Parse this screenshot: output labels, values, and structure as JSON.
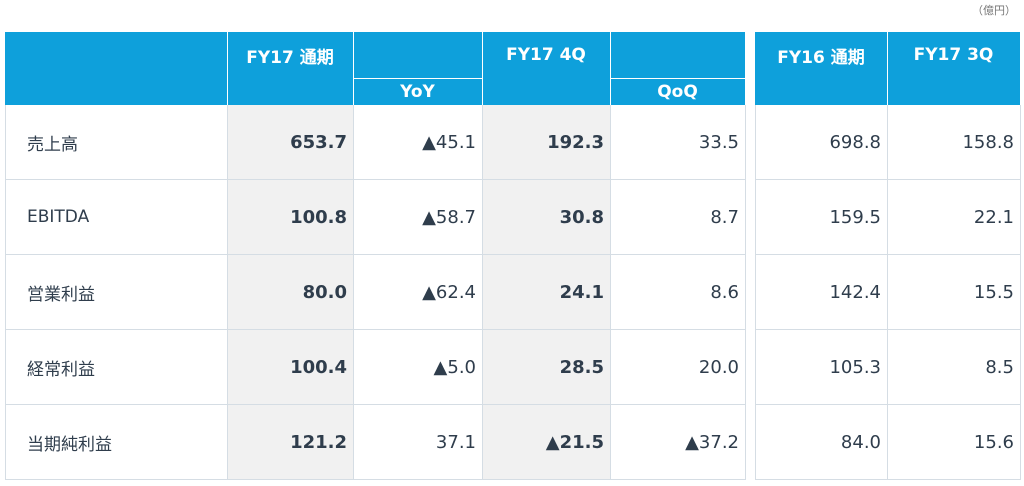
{
  "unit": "（億円）",
  "table": {
    "columns": [
      "FY17 通期",
      "YoY",
      "FY17 4Q",
      "QoQ",
      "FY16 通期",
      "FY17 3Q"
    ],
    "rows": [
      [
        "売上高",
        "653.7",
        "▲45.1",
        "192.3",
        "33.5",
        "698.8",
        "158.8"
      ],
      [
        "EBITDA",
        "100.8",
        "▲58.7",
        "30.8",
        "8.7",
        "159.5",
        "22.1"
      ],
      [
        "営業利益",
        "80.0",
        "▲62.4",
        "24.1",
        "8.6",
        "142.4",
        "15.5"
      ],
      [
        "経常利益",
        "100.4",
        "▲5.0",
        "28.5",
        "20.0",
        "105.3",
        "8.5"
      ],
      [
        "当期純利益",
        "121.2",
        "37.1",
        "▲21.5",
        "▲37.2",
        "84.0",
        "15.6"
      ]
    ]
  }
}
